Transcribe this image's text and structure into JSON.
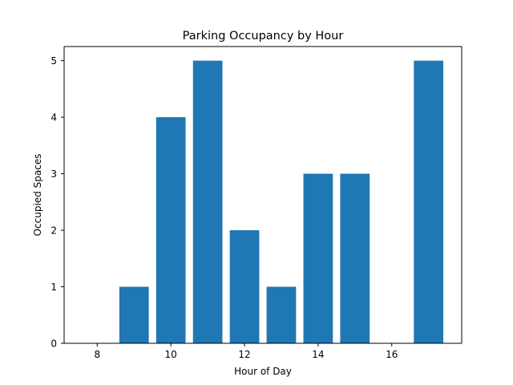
{
  "chart_data": {
    "type": "bar",
    "title": "Parking Occupancy by Hour",
    "xlabel": "Hour of Day",
    "ylabel": "Occupied Spaces",
    "x": [
      8,
      9,
      10,
      11,
      12,
      13,
      14,
      15,
      16,
      17
    ],
    "values": [
      0,
      1,
      4,
      5,
      2,
      1,
      3,
      3,
      0,
      5
    ],
    "xlim": [
      7.1,
      17.9
    ],
    "ylim": [
      0,
      5.25
    ],
    "xticks": [
      8,
      10,
      12,
      14,
      16
    ],
    "xtick_labels": [
      "8",
      "10",
      "12",
      "14",
      "16"
    ],
    "yticks": [
      0,
      1,
      2,
      3,
      4,
      5
    ],
    "ytick_labels": [
      "0",
      "1",
      "2",
      "3",
      "4",
      "5"
    ],
    "bar_width": 0.8,
    "bar_color": "#1f77b4",
    "grid": false,
    "legend": "none"
  }
}
